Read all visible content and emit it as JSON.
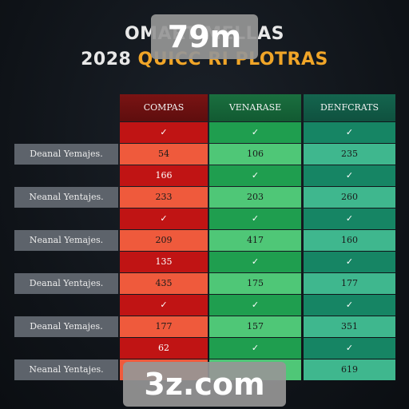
{
  "title": {
    "line1": "OMART          MELLAS",
    "line2_a": "2028 ",
    "line2_b": "QUICC RI PLOTRAS"
  },
  "watermarks": {
    "top": "79m",
    "bottom": "3z.com"
  },
  "columns": [
    "COMPAS",
    "VENARASE",
    "DENFCRATS"
  ],
  "rows": [
    {
      "label": "",
      "cells": [
        "✓",
        "✓",
        "✓"
      ]
    },
    {
      "label": "Deanal Yemajes.",
      "cells": [
        "54",
        "106",
        "235"
      ]
    },
    {
      "label": "",
      "cells": [
        "166",
        "✓",
        "✓"
      ]
    },
    {
      "label": "Neanal Yentajes.",
      "cells": [
        "233",
        "203",
        "260"
      ]
    },
    {
      "label": "",
      "cells": [
        "✓",
        "✓",
        "✓"
      ]
    },
    {
      "label": "Neanal Yemajes.",
      "cells": [
        "209",
        "417",
        "160"
      ]
    },
    {
      "label": "",
      "cells": [
        "135",
        "✓",
        "✓"
      ]
    },
    {
      "label": "Deanal Yentajes.",
      "cells": [
        "435",
        "175",
        "177"
      ]
    },
    {
      "label": "",
      "cells": [
        "✓",
        "✓",
        "✓"
      ]
    },
    {
      "label": "Deanal Yemajes.",
      "cells": [
        "177",
        "157",
        "351"
      ]
    },
    {
      "label": "",
      "cells": [
        "62",
        "✓",
        "✓"
      ]
    },
    {
      "label": "Neanal Yentajes.",
      "cells": [
        "",
        "",
        "619"
      ]
    }
  ],
  "colors": {
    "dark_red": "#c01414",
    "light_red": "#ef5a3c",
    "dark_green": "#1f9e4f",
    "light_green": "#4fc777",
    "dark_teal": "#168564",
    "light_teal": "#3fb78e",
    "title_accent": "#f0a528"
  }
}
